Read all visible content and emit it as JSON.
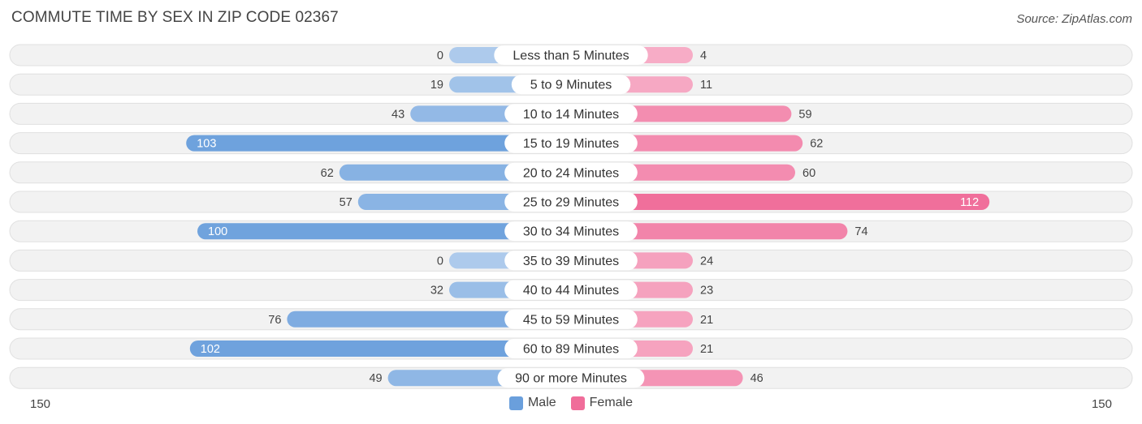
{
  "header": {
    "title": "COMMUTE TIME BY SEX IN ZIP CODE 02367",
    "source": "Source: ZipAtlas.com"
  },
  "chart_data": {
    "type": "bar",
    "orientation": "horizontal-diverging",
    "categories": [
      "Less than 5 Minutes",
      "5 to 9 Minutes",
      "10 to 14 Minutes",
      "15 to 19 Minutes",
      "20 to 24 Minutes",
      "25 to 29 Minutes",
      "30 to 34 Minutes",
      "35 to 39 Minutes",
      "40 to 44 Minutes",
      "45 to 59 Minutes",
      "60 to 89 Minutes",
      "90 or more Minutes"
    ],
    "series": [
      {
        "name": "Male",
        "color": "#6a9fdc",
        "values": [
          0,
          19,
          43,
          103,
          62,
          57,
          100,
          0,
          32,
          76,
          102,
          49
        ]
      },
      {
        "name": "Female",
        "color": "#f06d9a",
        "values": [
          4,
          11,
          59,
          62,
          60,
          112,
          74,
          24,
          23,
          21,
          21,
          46
        ]
      }
    ],
    "axis": {
      "left_label": "150",
      "right_label": "150",
      "max": 150
    },
    "legend_position": "bottom-center"
  }
}
